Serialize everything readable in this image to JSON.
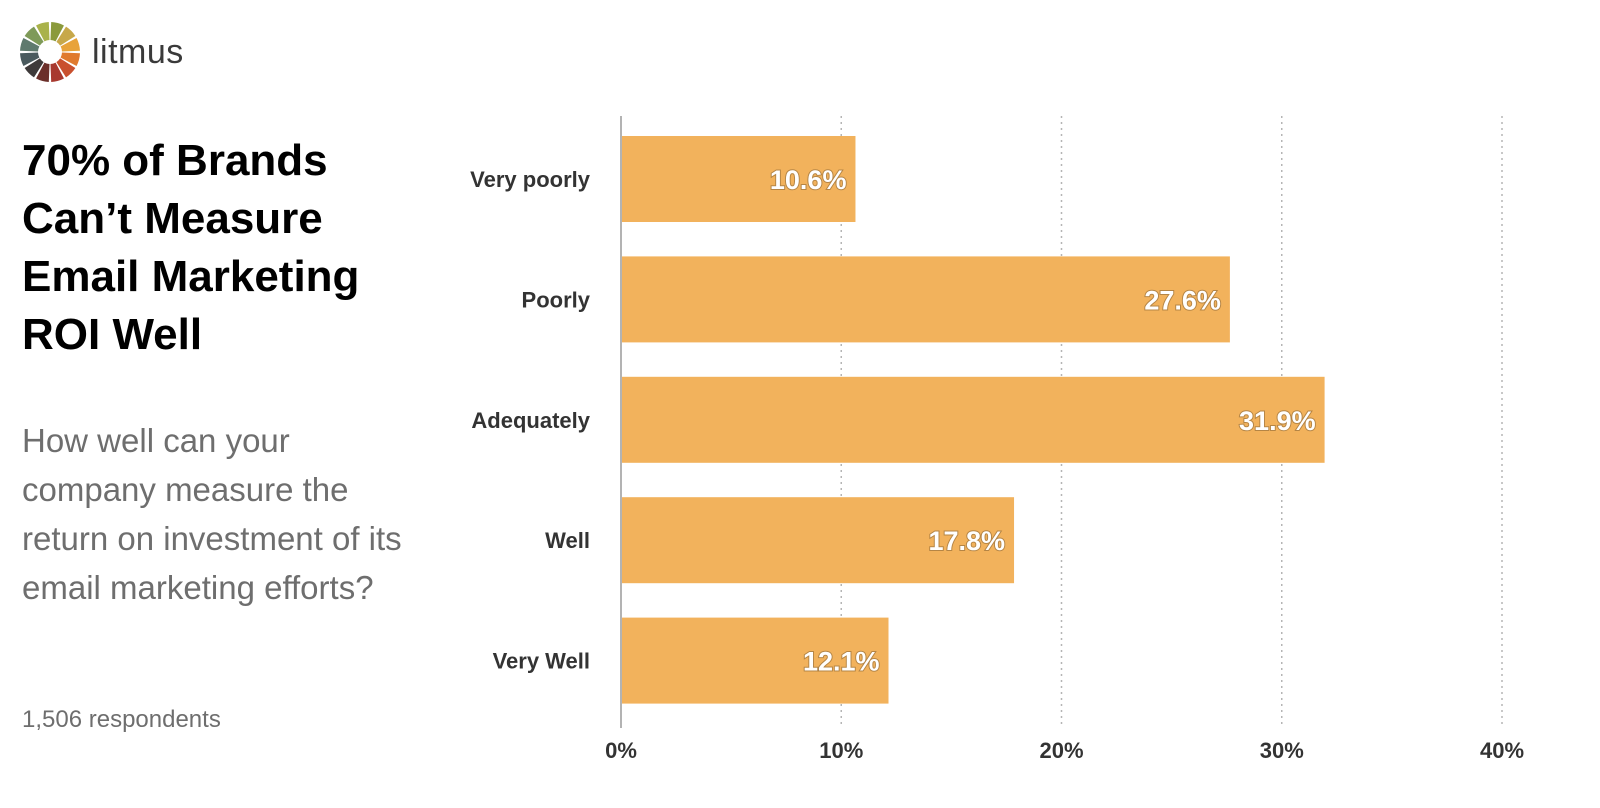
{
  "brand": {
    "name": "litmus",
    "logo_colors": [
      "#8b9a3c",
      "#c7a84a",
      "#e8a33a",
      "#e07a2e",
      "#c9502e",
      "#a8392f",
      "#6b2f2a",
      "#3e3a3a",
      "#4a5a5e",
      "#5f7a6e",
      "#7e9a58",
      "#a9b24a"
    ]
  },
  "headline": "70% of Brands Can’t Measure Email Marketing ROI Well",
  "question": "How well can your company measure the return on investment of its email marketing efforts?",
  "respondents": "1,506 respondents",
  "colors": {
    "bar": "#f2b25c",
    "grid": "#b5b5b5",
    "axis": "#9a9a9a"
  },
  "chart_data": {
    "type": "bar",
    "orientation": "horizontal",
    "categories": [
      "Very poorly",
      "Poorly",
      "Adequately",
      "Well",
      "Very Well"
    ],
    "values": [
      10.6,
      27.6,
      31.9,
      17.8,
      12.1
    ],
    "value_labels": [
      "10.6%",
      "27.6%",
      "31.9%",
      "17.8%",
      "12.1%"
    ],
    "xlim": [
      0,
      40
    ],
    "ticks": [
      0,
      10,
      20,
      30,
      40
    ],
    "tick_labels": [
      "0%",
      "10%",
      "20%",
      "30%",
      "40%"
    ],
    "grid": "vertical-dotted",
    "title": "",
    "xlabel": "",
    "ylabel": ""
  }
}
